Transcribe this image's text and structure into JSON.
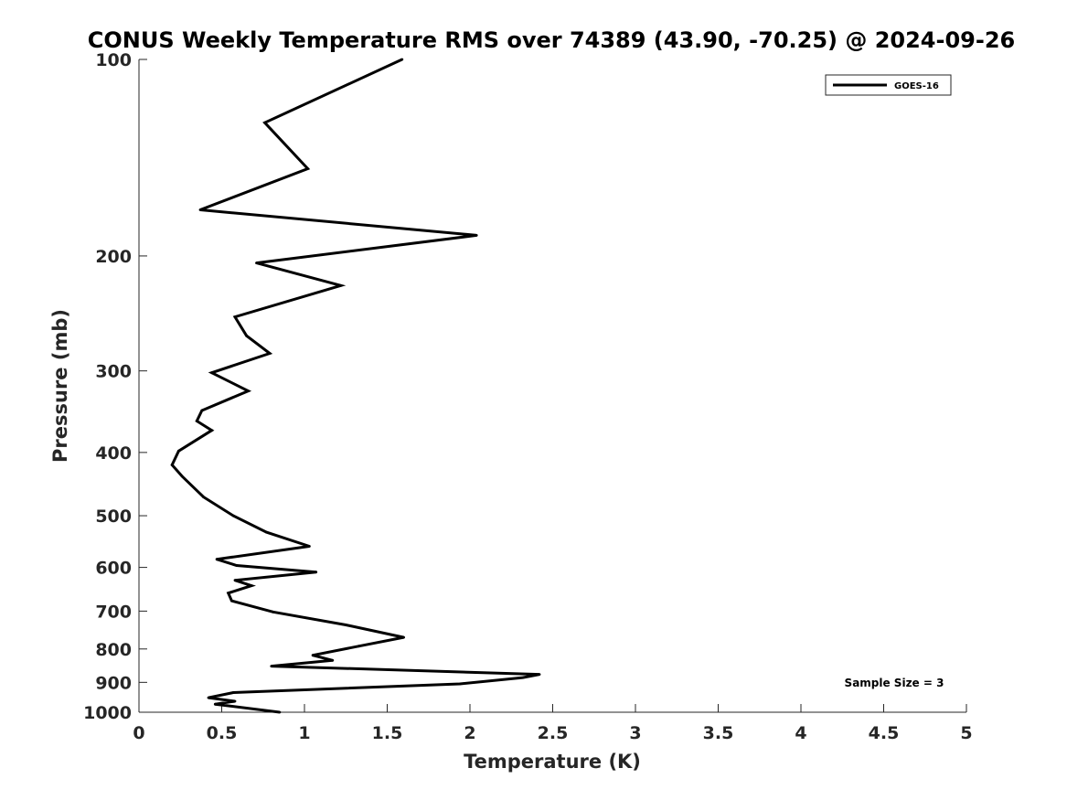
{
  "chart_data": {
    "type": "line",
    "title": "CONUS Weekly Temperature RMS over 74389 (43.90, -70.25) @ 2024-09-26",
    "xlabel": "Temperature (K)",
    "ylabel": "Pressure (mb)",
    "xlim": [
      0,
      5
    ],
    "ylim": [
      1000,
      100
    ],
    "y_scale": "log",
    "x_ticks": [
      "0",
      "0.5",
      "1",
      "1.5",
      "2",
      "2.5",
      "3",
      "3.5",
      "4",
      "4.5",
      "5"
    ],
    "y_ticks": [
      "100",
      "200",
      "300",
      "400",
      "500",
      "600",
      "700",
      "800",
      "900",
      "1000"
    ],
    "grid": false,
    "legend_position": "top-right",
    "annotation": "Sample Size = 3",
    "series": [
      {
        "name": "GOES-16",
        "color": "#000000",
        "points": [
          [
            1.59,
            100
          ],
          [
            0.76,
            125
          ],
          [
            1.02,
            147
          ],
          [
            0.37,
            170
          ],
          [
            2.04,
            186
          ],
          [
            0.71,
            205
          ],
          [
            1.22,
            222
          ],
          [
            0.58,
            248
          ],
          [
            0.65,
            265
          ],
          [
            0.79,
            282
          ],
          [
            0.44,
            302
          ],
          [
            0.66,
            322
          ],
          [
            0.38,
            345
          ],
          [
            0.35,
            358
          ],
          [
            0.44,
            370
          ],
          [
            0.24,
            398
          ],
          [
            0.2,
            418
          ],
          [
            0.26,
            435
          ],
          [
            0.39,
            468
          ],
          [
            0.57,
            500
          ],
          [
            0.77,
            530
          ],
          [
            1.03,
            557
          ],
          [
            0.47,
            583
          ],
          [
            0.59,
            596
          ],
          [
            1.07,
            610
          ],
          [
            0.58,
            628
          ],
          [
            0.68,
            640
          ],
          [
            0.54,
            657
          ],
          [
            0.56,
            675
          ],
          [
            0.81,
            702
          ],
          [
            1.25,
            735
          ],
          [
            1.6,
            768
          ],
          [
            1.33,
            792
          ],
          [
            1.05,
            818
          ],
          [
            1.17,
            833
          ],
          [
            0.8,
            850
          ],
          [
            2.42,
            875
          ],
          [
            2.32,
            885
          ],
          [
            1.94,
            905
          ],
          [
            0.57,
            933
          ],
          [
            0.42,
            950
          ],
          [
            0.58,
            962
          ],
          [
            0.46,
            972
          ],
          [
            0.85,
            1000
          ]
        ]
      }
    ]
  }
}
